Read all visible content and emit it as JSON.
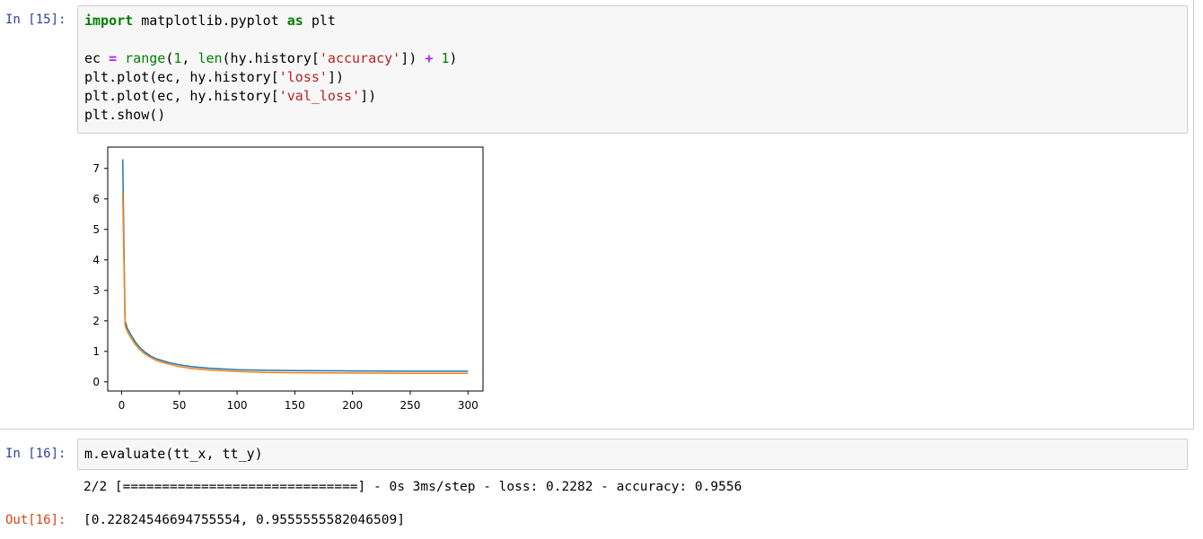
{
  "cell15": {
    "prompt": "In [15]:",
    "code": {
      "l1_kw1": "import",
      "l1_mod": " matplotlib.pyplot ",
      "l1_kw2": "as",
      "l1_alias": " plt",
      "l3_a": "ec ",
      "l3_eq": "=",
      "l3_b": " ",
      "l3_range": "range",
      "l3_c": "(",
      "l3_one": "1",
      "l3_d": ", ",
      "l3_len": "len",
      "l3_e": "(hy.history[",
      "l3_str": "'accuracy'",
      "l3_f": "]) ",
      "l3_plus": "+",
      "l3_g": " ",
      "l3_one2": "1",
      "l3_h": ")",
      "l4_a": "plt.plot(ec, hy.history[",
      "l4_str": "'loss'",
      "l4_b": "])",
      "l5_a": "plt.plot(ec, hy.history[",
      "l5_str": "'val_loss'",
      "l5_b": "])",
      "l6": "plt.show()"
    }
  },
  "chart_data": {
    "type": "line",
    "title": "",
    "xlabel": "",
    "ylabel": "",
    "xlim": [
      -12,
      313
    ],
    "ylim": [
      -0.3,
      7.7
    ],
    "xticks": [
      "0",
      "50",
      "100",
      "150",
      "200",
      "250",
      "300"
    ],
    "yticks": [
      "0",
      "1",
      "2",
      "3",
      "4",
      "5",
      "6",
      "7"
    ],
    "colors": [
      "#1f77b4",
      "#ff7f0e"
    ],
    "series": [
      {
        "x": [
          1,
          2,
          3,
          5,
          8,
          12,
          16,
          20,
          25,
          30,
          40,
          50,
          60,
          75,
          100,
          125,
          150,
          200,
          250,
          300
        ],
        "values": [
          7.3,
          4.6,
          2.0,
          1.75,
          1.55,
          1.3,
          1.12,
          0.98,
          0.85,
          0.76,
          0.64,
          0.56,
          0.5,
          0.45,
          0.4,
          0.38,
          0.37,
          0.36,
          0.35,
          0.35
        ]
      },
      {
        "x": [
          1,
          2,
          3,
          5,
          8,
          12,
          16,
          20,
          25,
          30,
          40,
          50,
          60,
          75,
          100,
          125,
          150,
          200,
          250,
          300
        ],
        "values": [
          6.2,
          4.0,
          1.85,
          1.65,
          1.45,
          1.22,
          1.05,
          0.92,
          0.8,
          0.7,
          0.59,
          0.5,
          0.44,
          0.39,
          0.34,
          0.31,
          0.3,
          0.29,
          0.28,
          0.28
        ]
      }
    ]
  },
  "cell16": {
    "prompt_in": "In [16]:",
    "code": "m.evaluate(tt_x, tt_y)",
    "stream": "2/2 [==============================] - 0s 3ms/step - loss: 0.2282 - accuracy: 0.9556",
    "prompt_out": "Out[16]:",
    "result": "[0.22824546694755554, 0.9555555582046509]"
  }
}
